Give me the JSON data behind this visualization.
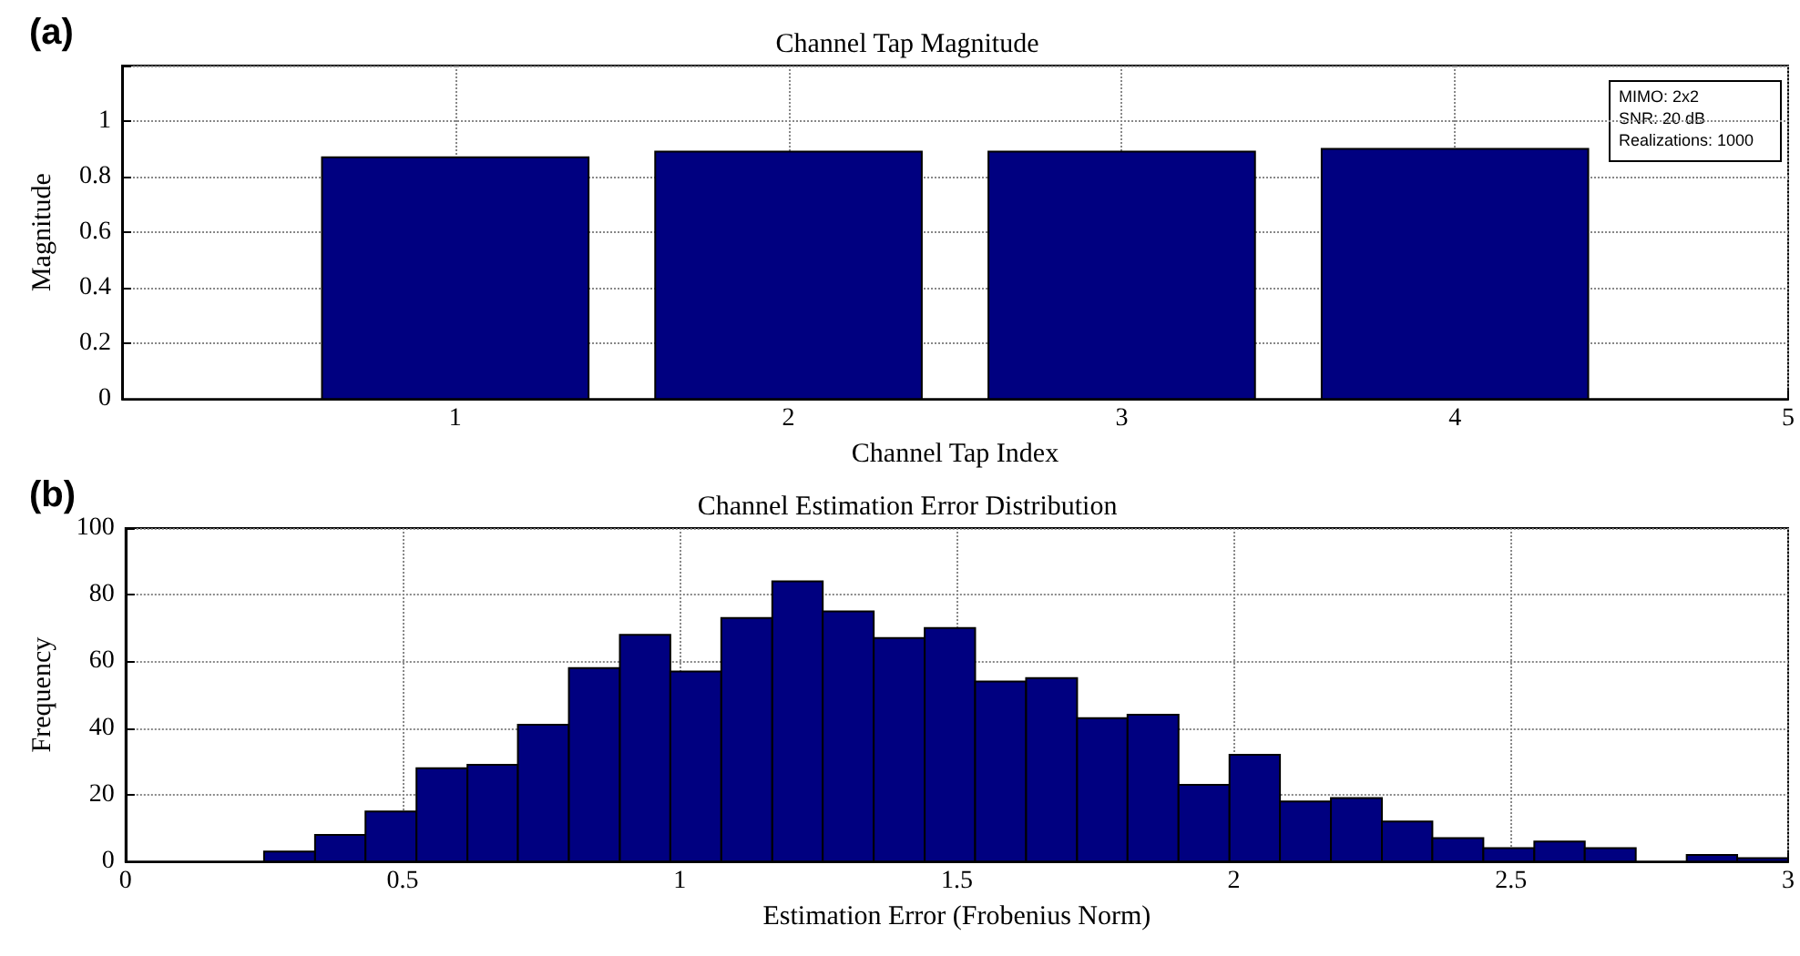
{
  "chart_data": [
    {
      "type": "bar",
      "title": "Channel Tap Magnitude",
      "xlabel": "Channel Tap Index",
      "ylabel": "Magnitude",
      "x": [
        1,
        2,
        3,
        4
      ],
      "values": [
        0.87,
        0.89,
        0.89,
        0.9
      ],
      "color": "#000080",
      "xlim": [
        0,
        5
      ],
      "xticks": [
        1,
        2,
        3,
        4,
        5
      ],
      "ylim": [
        0,
        1.2
      ],
      "yticks": [
        0,
        0.2,
        0.4,
        0.6,
        0.8,
        1
      ],
      "grid": true,
      "annotations": [
        "(a)",
        "MIMO: 2x2",
        "SNR: 20 dB",
        "Realizations: 1000"
      ]
    },
    {
      "type": "histogram",
      "title": "Channel Estimation Error Distribution",
      "xlabel": "Estimation Error (Frobenius Norm)",
      "ylabel": "Frequency",
      "bins": [
        0.25,
        0.342,
        0.433,
        0.525,
        0.617,
        0.708,
        0.8,
        0.892,
        0.983,
        1.075,
        1.167,
        1.258,
        1.35,
        1.442,
        1.533,
        1.625,
        1.717,
        1.808,
        1.9,
        1.992,
        2.083,
        2.175,
        2.267,
        2.358,
        2.45,
        2.542,
        2.633,
        2.725,
        2.817,
        2.908,
        3.0
      ],
      "values": [
        3,
        8,
        15,
        28,
        29,
        41,
        58,
        68,
        57,
        73,
        84,
        75,
        67,
        70,
        54,
        55,
        43,
        44,
        23,
        32,
        18,
        19,
        12,
        7,
        4,
        6,
        4,
        0,
        2,
        1
      ],
      "color": "#000080",
      "xlim": [
        0,
        3
      ],
      "xticks": [
        0,
        0.5,
        1,
        1.5,
        2,
        2.5,
        3
      ],
      "ylim": [
        0,
        100
      ],
      "yticks": [
        0,
        20,
        40,
        60,
        80,
        100
      ],
      "grid": true,
      "annotations": [
        "(b)"
      ]
    }
  ]
}
